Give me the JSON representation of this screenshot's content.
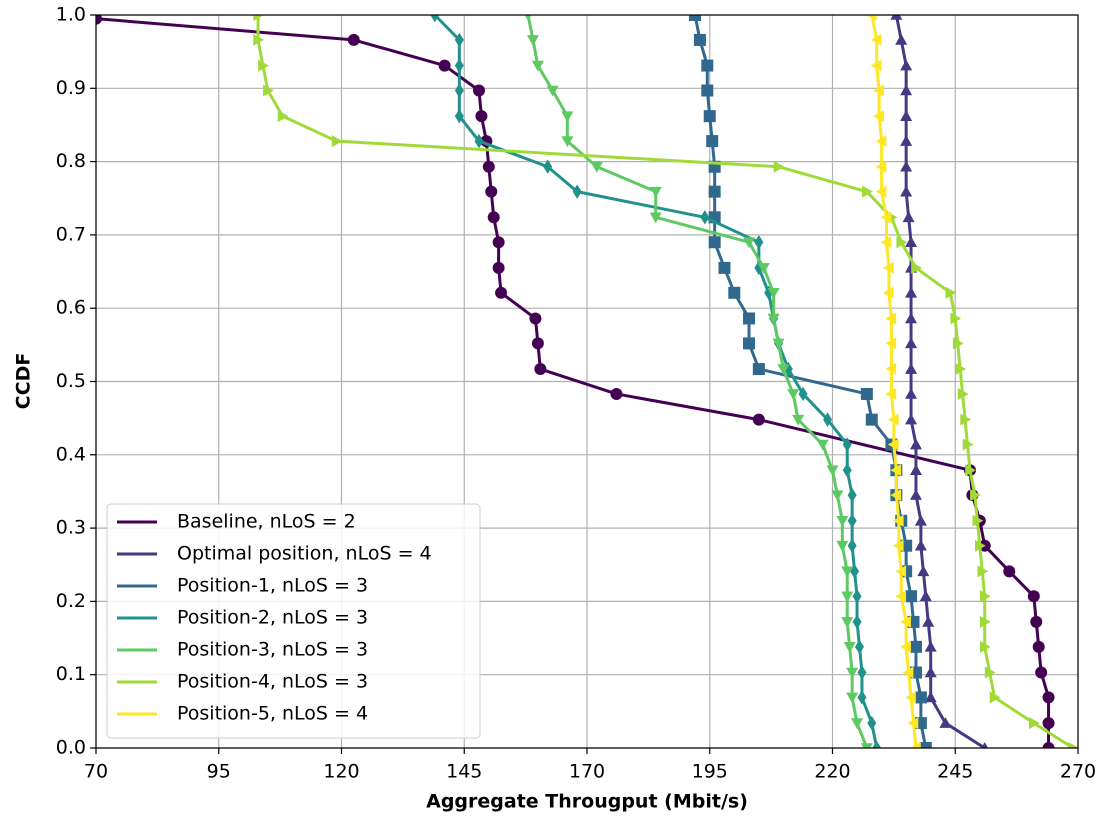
{
  "chart_data": {
    "type": "line",
    "xlabel": "Aggregate Througput (Mbit/s)",
    "ylabel": "CCDF",
    "xlim": [
      70,
      270
    ],
    "ylim": [
      0,
      1
    ],
    "xticks": [
      70,
      95,
      120,
      145,
      170,
      195,
      220,
      245,
      270
    ],
    "yticks": [
      {
        "value": 0,
        "label": "0.0"
      },
      {
        "value": 0.1,
        "label": "0.1"
      },
      {
        "value": 0.2,
        "label": "0.2"
      },
      {
        "value": 0.3,
        "label": "0.3"
      },
      {
        "value": 0.4,
        "label": "0.4"
      },
      {
        "value": 0.5,
        "label": "0.5"
      },
      {
        "value": 0.6,
        "label": "0.6"
      },
      {
        "value": 0.7,
        "label": "0.7"
      },
      {
        "value": 0.8,
        "label": "0.8"
      },
      {
        "value": 0.9,
        "label": "0.9"
      },
      {
        "value": 1,
        "label": "1.0"
      }
    ],
    "grid": true,
    "legend": "lower left",
    "series": [
      {
        "name": "Baseline, nLoS = 2",
        "color": "#440154",
        "marker": "o",
        "x": [
          70,
          122.5,
          141,
          148,
          148.5,
          149.5,
          150,
          150.5,
          151,
          152,
          152,
          152.5,
          159.5,
          160,
          160.5,
          176,
          205,
          248,
          248.5,
          250,
          251,
          256,
          261,
          261.5,
          262,
          262.5,
          264,
          264,
          264
        ],
        "values": [
          0.995,
          0.966,
          0.931,
          0.897,
          0.862,
          0.828,
          0.793,
          0.759,
          0.724,
          0.69,
          0.655,
          0.621,
          0.586,
          0.552,
          0.517,
          0.483,
          0.448,
          0.379,
          0.345,
          0.31,
          0.276,
          0.241,
          0.207,
          0.172,
          0.138,
          0.103,
          0.069,
          0.034,
          0
        ]
      },
      {
        "name": "Optimal position, nLoS = 4",
        "color": "#443983",
        "marker": "^",
        "x": [
          233,
          234,
          235,
          235,
          235,
          235,
          235,
          235,
          235.5,
          236,
          236,
          236,
          236,
          236,
          236,
          236,
          236,
          237,
          237,
          237,
          238,
          238,
          238.5,
          239,
          239.5,
          240,
          240,
          240,
          243,
          251
        ],
        "values": [
          1,
          0.966,
          0.931,
          0.897,
          0.862,
          0.828,
          0.793,
          0.759,
          0.724,
          0.69,
          0.655,
          0.621,
          0.586,
          0.552,
          0.517,
          0.483,
          0.448,
          0.414,
          0.379,
          0.345,
          0.31,
          0.276,
          0.241,
          0.207,
          0.172,
          0.138,
          0.103,
          0.069,
          0.034,
          0
        ]
      },
      {
        "name": "Position-1, nLoS = 3",
        "color": "#31688e",
        "marker": "s",
        "x": [
          192,
          193,
          194.5,
          194.5,
          195,
          195.5,
          196,
          196,
          196,
          196,
          198,
          200,
          203,
          203,
          205,
          227,
          228,
          232,
          233,
          233,
          234,
          235,
          235,
          236,
          236.5,
          237,
          237,
          238,
          238,
          239
        ],
        "values": [
          1,
          0.966,
          0.931,
          0.897,
          0.862,
          0.828,
          0.793,
          0.759,
          0.724,
          0.69,
          0.655,
          0.621,
          0.586,
          0.552,
          0.517,
          0.483,
          0.448,
          0.414,
          0.379,
          0.345,
          0.31,
          0.276,
          0.241,
          0.207,
          0.172,
          0.138,
          0.103,
          0.069,
          0.034,
          0
        ]
      },
      {
        "name": "Position-2, nLoS = 3",
        "color": "#21918c",
        "marker": "d",
        "x": [
          139,
          144,
          144,
          144,
          144,
          148,
          162,
          168,
          194,
          205,
          205,
          207,
          208,
          209,
          211,
          214,
          219,
          223,
          223,
          224,
          224,
          224,
          224.5,
          225,
          225,
          225.5,
          226,
          226,
          228,
          229
        ],
        "values": [
          1,
          0.966,
          0.931,
          0.897,
          0.862,
          0.828,
          0.793,
          0.759,
          0.724,
          0.69,
          0.655,
          0.621,
          0.586,
          0.552,
          0.517,
          0.483,
          0.448,
          0.414,
          0.379,
          0.345,
          0.31,
          0.276,
          0.241,
          0.207,
          0.172,
          0.138,
          0.103,
          0.069,
          0.034,
          0
        ]
      },
      {
        "name": "Position-3, nLoS = 3",
        "color": "#5ec962",
        "marker": "v",
        "x": [
          158,
          159,
          160,
          163,
          166,
          166,
          172,
          184,
          184,
          203,
          206,
          208,
          208,
          209,
          210,
          212,
          213,
          218,
          220,
          221,
          222,
          222,
          223,
          223,
          223,
          223.5,
          224,
          224,
          225,
          227
        ],
        "values": [
          1,
          0.966,
          0.931,
          0.897,
          0.862,
          0.828,
          0.793,
          0.759,
          0.724,
          0.69,
          0.655,
          0.621,
          0.586,
          0.552,
          0.517,
          0.483,
          0.448,
          0.414,
          0.379,
          0.345,
          0.31,
          0.276,
          0.241,
          0.207,
          0.172,
          0.138,
          0.103,
          0.069,
          0.034,
          0
        ]
      },
      {
        "name": "Position-4, nLoS = 3",
        "color": "#a0da39",
        "marker": ">",
        "x": [
          103,
          103,
          104,
          105,
          108,
          119,
          209,
          227,
          232,
          234,
          237,
          244,
          245,
          245.5,
          246,
          246.5,
          247,
          247.5,
          248,
          249,
          249.5,
          250,
          250.5,
          251,
          251,
          251,
          252,
          253,
          261,
          269
        ],
        "values": [
          1,
          0.966,
          0.931,
          0.897,
          0.862,
          0.828,
          0.793,
          0.759,
          0.724,
          0.69,
          0.655,
          0.621,
          0.586,
          0.552,
          0.517,
          0.483,
          0.448,
          0.414,
          0.379,
          0.345,
          0.31,
          0.276,
          0.241,
          0.207,
          0.172,
          0.138,
          0.103,
          0.069,
          0.034,
          0
        ]
      },
      {
        "name": "Position-5, nLoS = 4",
        "color": "#fde725",
        "marker": "<",
        "x": [
          228,
          229,
          229,
          229.5,
          229.5,
          230,
          230,
          230,
          231,
          231,
          231.5,
          231.5,
          232,
          232,
          232,
          232,
          232.5,
          232.5,
          233,
          233,
          233.5,
          233.5,
          234,
          234,
          235,
          235,
          235.5,
          236,
          236.5,
          237
        ],
        "values": [
          1,
          0.966,
          0.931,
          0.897,
          0.862,
          0.828,
          0.793,
          0.759,
          0.724,
          0.69,
          0.655,
          0.621,
          0.586,
          0.552,
          0.517,
          0.483,
          0.448,
          0.414,
          0.379,
          0.345,
          0.31,
          0.276,
          0.241,
          0.207,
          0.172,
          0.138,
          0.103,
          0.069,
          0.034,
          0
        ]
      }
    ]
  }
}
